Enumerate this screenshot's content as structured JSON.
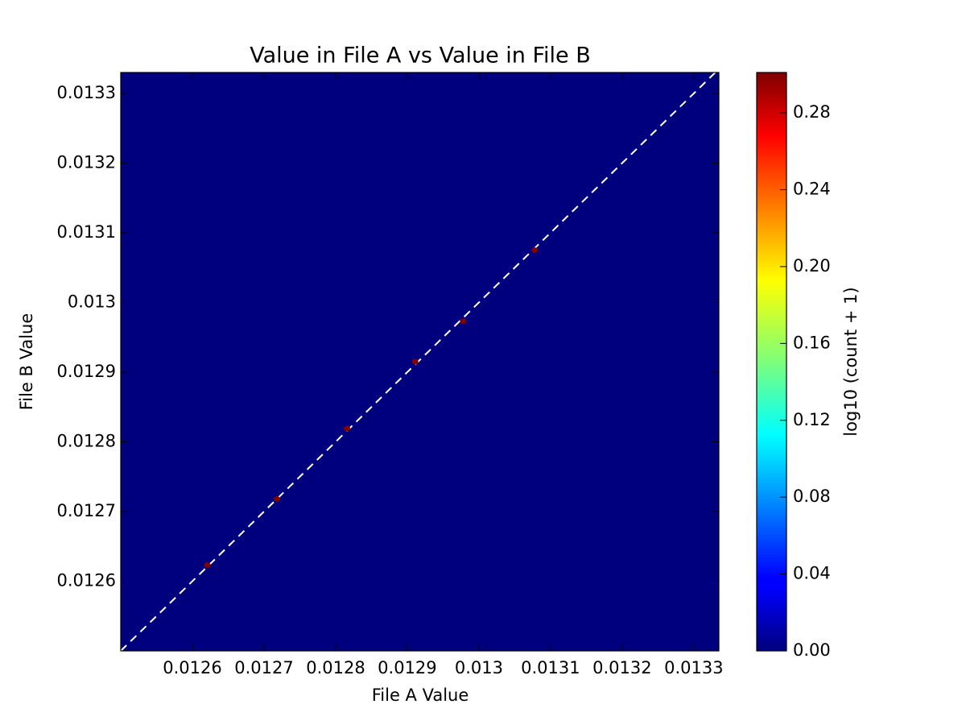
{
  "chart_data": {
    "type": "hist2d",
    "title": "Value in File A vs Value in File B",
    "xlabel": "File A Value",
    "ylabel": "File B Value",
    "colorbar_label": "log10 (count + 1)",
    "x": [
      0.012621,
      0.012718,
      0.012816,
      0.012911,
      0.012978,
      0.013078
    ],
    "y": [
      0.012623,
      0.012718,
      0.012819,
      0.012915,
      0.012973,
      0.013075
    ],
    "values": [
      0.301,
      0.301,
      0.301,
      0.301,
      0.301,
      0.301
    ],
    "xlim": [
      0.0125,
      0.013335
    ],
    "ylim": [
      0.0125,
      0.01333
    ],
    "xticks": [
      0.0126,
      0.0127,
      0.0128,
      0.0129,
      0.013,
      0.0131,
      0.0132,
      0.0133
    ],
    "yticks": [
      0.0126,
      0.0127,
      0.0128,
      0.0129,
      0.013,
      0.0131,
      0.0132,
      0.0133
    ],
    "clim": [
      0,
      0.301
    ],
    "cticks": [
      {
        "value": 0,
        "label": "0.00"
      },
      {
        "value": 0.04,
        "label": "0.04"
      },
      {
        "value": 0.08,
        "label": "0.08"
      },
      {
        "value": 0.12,
        "label": "0.12"
      },
      {
        "value": 0.16,
        "label": "0.16"
      },
      {
        "value": 0.2,
        "label": "0.20"
      },
      {
        "value": 0.24,
        "label": "0.24"
      },
      {
        "value": 0.28,
        "label": "0.28"
      }
    ],
    "colormap": "jet",
    "background": "#00007f",
    "diagonal": true
  }
}
